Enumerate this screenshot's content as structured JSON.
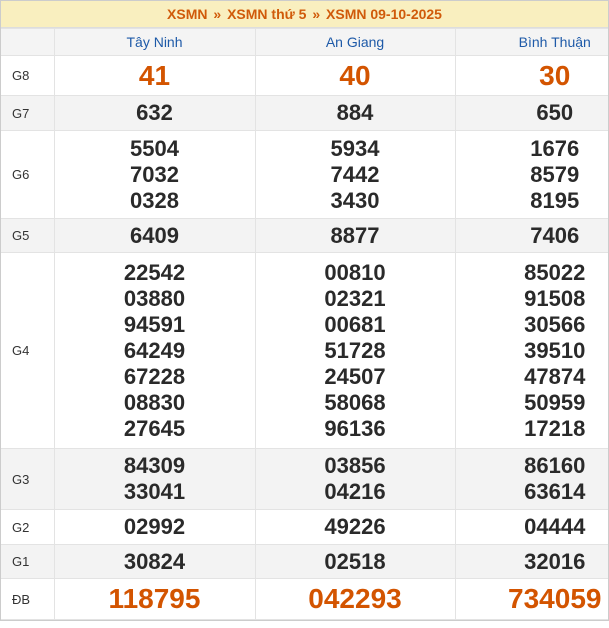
{
  "breadcrumb": [
    "XSMN",
    "XSMN thứ 5",
    "XSMN 09-10-2025"
  ],
  "separator": "»",
  "provinces": [
    "Tây Ninh",
    "An Giang",
    "Bình Thuận"
  ],
  "colors": {
    "accent": "#d35400",
    "header_blue": "#1e5aa8",
    "title_bg": "#f9efbf"
  },
  "rows": [
    {
      "label": "G8",
      "style": "big",
      "values": [
        [
          "41"
        ],
        [
          "40"
        ],
        [
          "30"
        ]
      ]
    },
    {
      "label": "G7",
      "style": "num",
      "values": [
        [
          "632"
        ],
        [
          "884"
        ],
        [
          "650"
        ]
      ]
    },
    {
      "label": "G6",
      "style": "num",
      "values": [
        [
          "5504",
          "7032",
          "0328"
        ],
        [
          "5934",
          "7442",
          "3430"
        ],
        [
          "1676",
          "8579",
          "8195"
        ]
      ]
    },
    {
      "label": "G5",
      "style": "num",
      "values": [
        [
          "6409"
        ],
        [
          "8877"
        ],
        [
          "7406"
        ]
      ]
    },
    {
      "label": "G4",
      "style": "num",
      "values": [
        [
          "22542",
          "03880",
          "94591",
          "64249",
          "67228",
          "08830",
          "27645"
        ],
        [
          "00810",
          "02321",
          "00681",
          "51728",
          "24507",
          "58068",
          "96136"
        ],
        [
          "85022",
          "91508",
          "30566",
          "39510",
          "47874",
          "50959",
          "17218"
        ]
      ]
    },
    {
      "label": "G3",
      "style": "num",
      "values": [
        [
          "84309",
          "33041"
        ],
        [
          "03856",
          "04216"
        ],
        [
          "86160",
          "63614"
        ]
      ]
    },
    {
      "label": "G2",
      "style": "num",
      "values": [
        [
          "02992"
        ],
        [
          "49226"
        ],
        [
          "04444"
        ]
      ]
    },
    {
      "label": "G1",
      "style": "num",
      "values": [
        [
          "30824"
        ],
        [
          "02518"
        ],
        [
          "32016"
        ]
      ]
    },
    {
      "label": "ĐB",
      "style": "big",
      "values": [
        [
          "118795"
        ],
        [
          "042293"
        ],
        [
          "734059"
        ]
      ]
    }
  ]
}
